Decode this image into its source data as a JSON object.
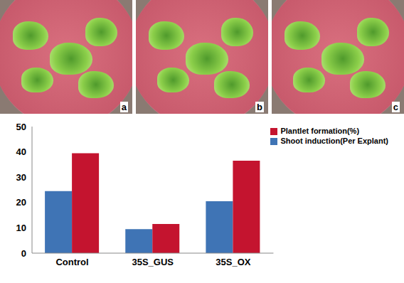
{
  "chart_data": {
    "type": "bar",
    "categories": [
      "Control",
      "35S_GUS",
      "35S_OX"
    ],
    "series": [
      {
        "name": "Shoot induction(Per Explant)",
        "color": "#3f74b5",
        "values": [
          24.5,
          9.5,
          20.5
        ]
      },
      {
        "name": "Plantlet formation(%)",
        "color": "#c4142f",
        "values": [
          39.5,
          11.5,
          36.5
        ]
      }
    ],
    "ylim": [
      0,
      50
    ],
    "yticks": [
      0,
      10,
      20,
      30,
      40,
      50
    ],
    "grid": false,
    "legend": "top-right"
  },
  "panels": [
    {
      "label": "a"
    },
    {
      "label": "b"
    },
    {
      "label": "c"
    }
  ]
}
